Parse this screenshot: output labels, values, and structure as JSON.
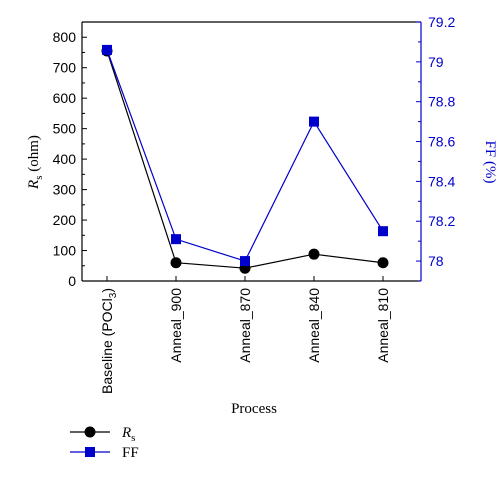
{
  "chart_data": {
    "type": "line",
    "categories": [
      "Baseline (POCl3)",
      "Anneal_900",
      "Anneal_870",
      "Anneal_840",
      "Anneal_810"
    ],
    "xlabel": "Process",
    "ylabel_left": "Rs (ohm)",
    "ylabel_left_parts": {
      "main": "R",
      "sub": "s",
      "unit": " (ohm)"
    },
    "ylabel_right": "FF (%)",
    "ylim_left": [
      0,
      850
    ],
    "ylim_right": [
      77.9,
      79.2
    ],
    "left_ticks": [
      0,
      100,
      200,
      300,
      400,
      500,
      600,
      700,
      800
    ],
    "right_ticks": [
      78,
      78.2,
      78.4,
      78.6,
      78.8,
      79,
      79.2
    ],
    "series": [
      {
        "name": "Rs",
        "axis": "left",
        "marker": "circle",
        "color": "#000000",
        "values": [
          755,
          60,
          42,
          88,
          60
        ]
      },
      {
        "name": "FF",
        "axis": "right",
        "marker": "square",
        "color": "#0000cc",
        "values": [
          79.06,
          78.11,
          78.0,
          78.7,
          78.15
        ]
      }
    ],
    "legend": [
      {
        "label_main": "R",
        "label_sub": "s",
        "marker": "circle",
        "color": "#000000"
      },
      {
        "label_main": "FF",
        "label_sub": "",
        "marker": "square",
        "color": "#0000cc"
      }
    ],
    "legend_placement": "bottom-left",
    "grid": false
  }
}
